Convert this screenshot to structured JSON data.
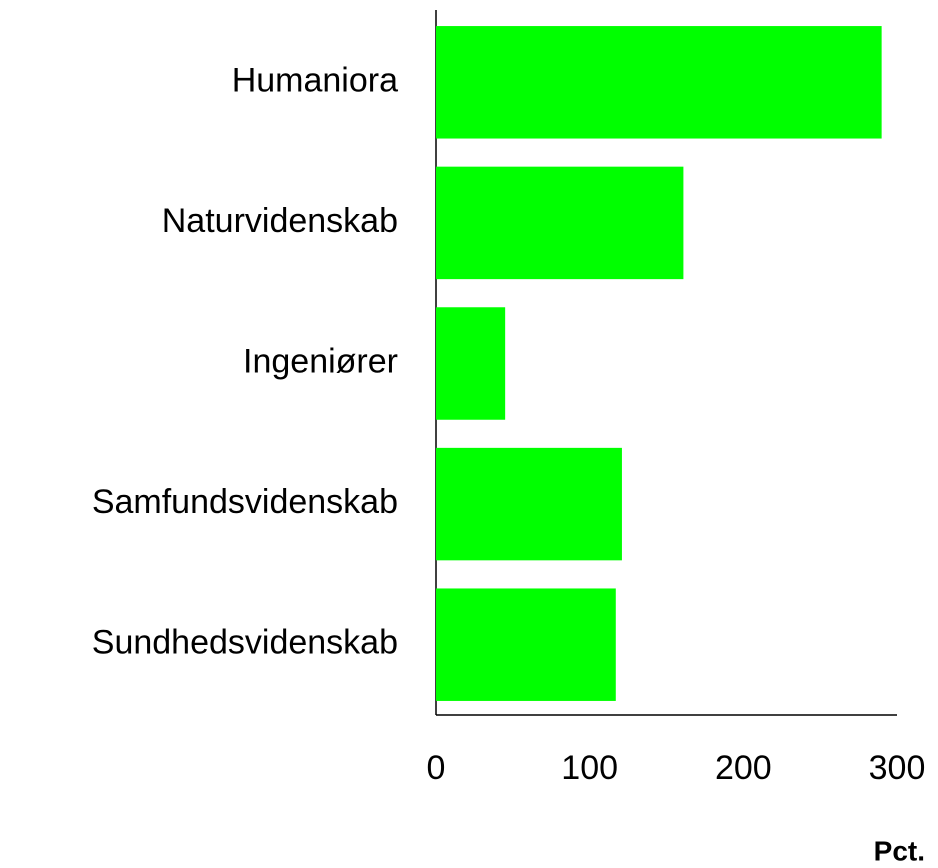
{
  "chart_data": {
    "type": "barh",
    "categories": [
      "Humaniora",
      "Naturvidenskab",
      "Ingeniører",
      "Samfundsvidenskab",
      "Sundhedsvidenskab"
    ],
    "values": [
      290,
      161,
      45,
      121,
      117
    ],
    "color": "#00ff00",
    "xlim": [
      0,
      300
    ],
    "xticks": [
      0,
      100,
      200,
      300
    ],
    "xlabel": "Pct.",
    "grid": false
  }
}
